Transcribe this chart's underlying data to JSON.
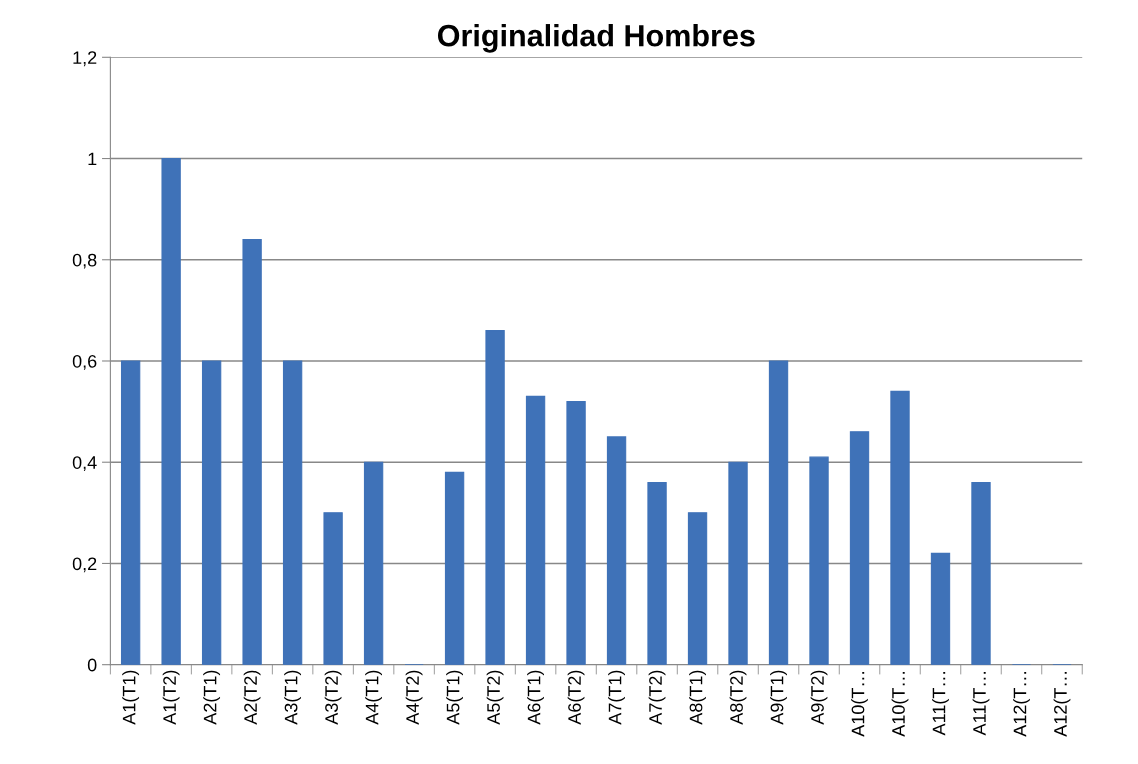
{
  "chart_data": {
    "type": "bar",
    "title": "Originalidad Hombres",
    "categories": [
      "A1(T1)",
      "A1(T2)",
      "A2(T1)",
      "A2(T2)",
      "A3(T1)",
      "A3(T2)",
      "A4(T1)",
      "A4(T2)",
      "A5(T1)",
      "A5(T2)",
      "A6(T1)",
      "A6(T2)",
      "A7(T1)",
      "A7(T2)",
      "A8(T1)",
      "A8(T2)",
      "A9(T1)",
      "A9(T2)",
      "A10(T…",
      "A10(T…",
      "A11(T…",
      "A11(T…",
      "A12(T…",
      "A12(T…"
    ],
    "values": [
      0.6,
      1.0,
      0.6,
      0.84,
      0.6,
      0.3,
      0.4,
      0,
      0.38,
      0.66,
      0.53,
      0.52,
      0.45,
      0.36,
      0.3,
      0.4,
      0.6,
      0.41,
      0.46,
      0.54,
      0.22,
      0.36,
      0,
      0
    ],
    "color": "#3f72b8",
    "ylim": [
      0,
      1.2
    ],
    "yticks": [
      0,
      {
        "value": 0.2,
        "label": "0,2"
      },
      {
        "value": 0.4,
        "label": "0,4"
      },
      {
        "value": 0.6,
        "label": "0,6"
      },
      {
        "value": 0.8,
        "label": "0,8"
      },
      1,
      {
        "value": 1.2,
        "label": "1,2"
      }
    ],
    "grid": "y"
  }
}
